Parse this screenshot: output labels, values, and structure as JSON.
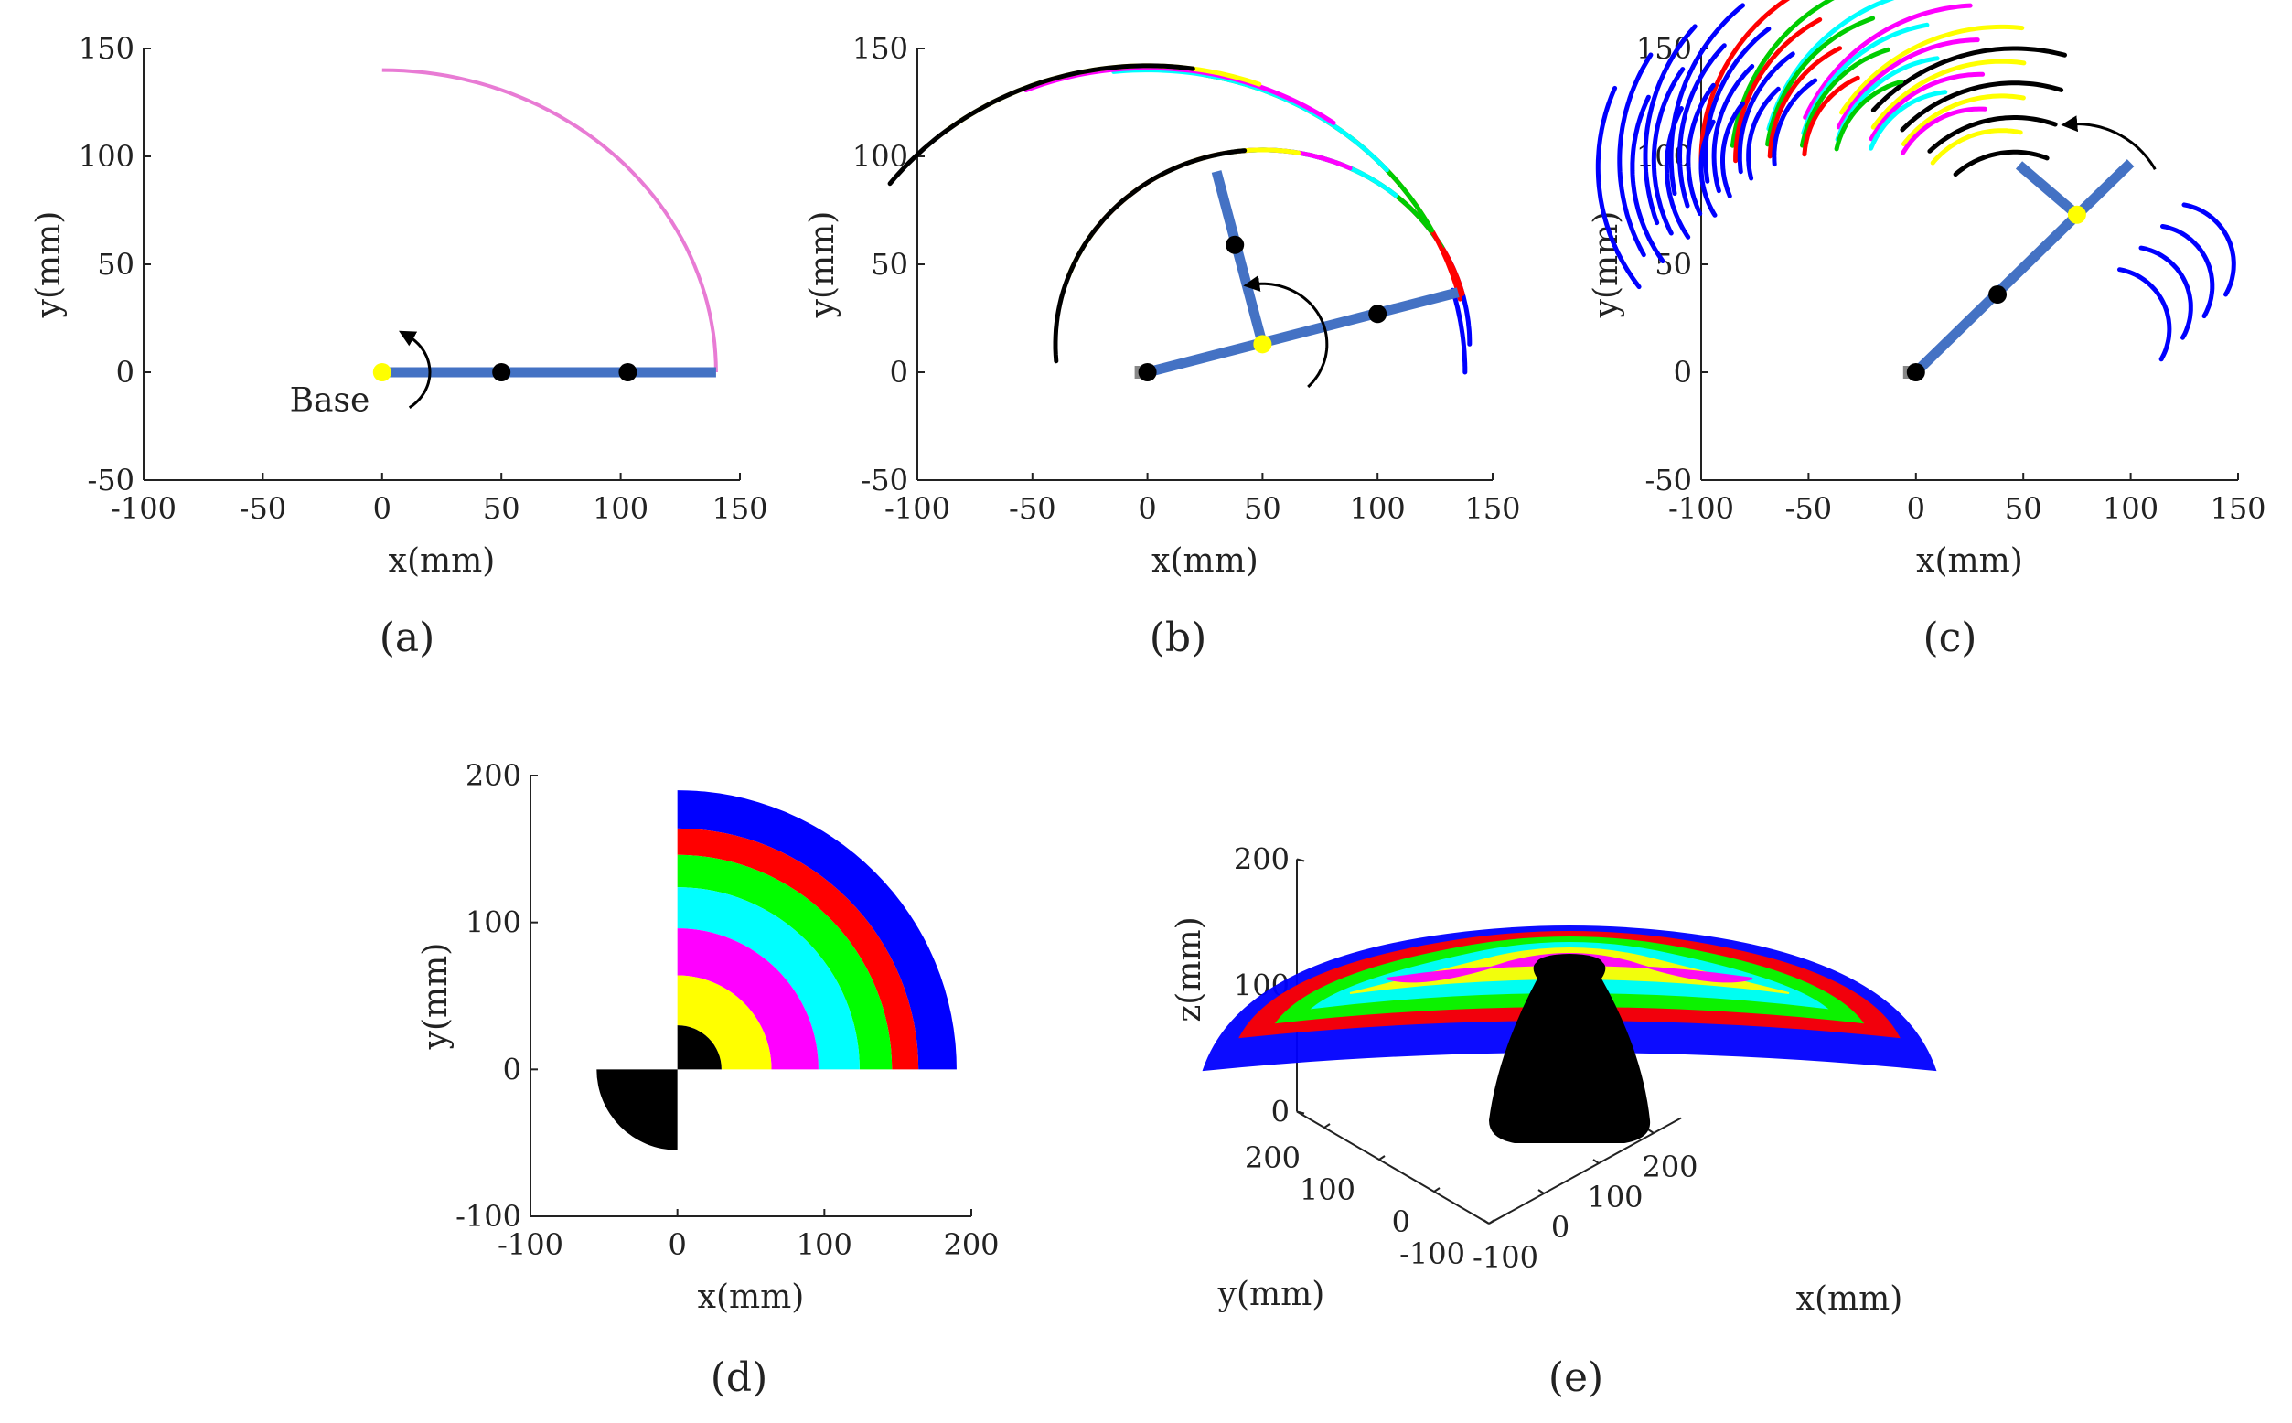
{
  "figure": {
    "panel_labels": [
      "(a)",
      "(b)",
      "(c)",
      "(d)",
      "(e)"
    ]
  },
  "colors": {
    "link": "#4472c4",
    "trajectory_a": "#e87bd4",
    "arc_cycle": [
      "#000000",
      "#ffff00",
      "#ff00ff",
      "#00ffff",
      "#00cc00",
      "#ff0000",
      "#0000ff"
    ],
    "base_joint": "#ffff00",
    "joint": "#000000",
    "region_blue": "#0000ff",
    "region_red": "#ff0000",
    "region_green": "#00ff00",
    "region_cyan": "#00ffff",
    "region_magenta": "#ff00ff",
    "region_yellow": "#ffff00",
    "region_black": "#000000"
  },
  "chart_data": [
    {
      "id": "a",
      "type": "line",
      "xlabel": "x(mm)",
      "ylabel": "y(mm)",
      "xlim": [
        -100,
        150
      ],
      "ylim": [
        -50,
        150
      ],
      "xticks": [
        -100,
        -50,
        0,
        50,
        100,
        150
      ],
      "yticks": [
        -50,
        0,
        50,
        100,
        150
      ],
      "annotation": "Base",
      "arm_links": [
        [
          [
            0,
            0
          ],
          [
            140,
            0
          ]
        ]
      ],
      "joints": [
        [
          50,
          0
        ],
        [
          103,
          0
        ]
      ],
      "base_joint": [
        0,
        0
      ],
      "arcs": [
        {
          "center": [
            0,
            0
          ],
          "radius": 140,
          "start_deg": 0,
          "end_deg": 90,
          "color": "#e87bd4"
        }
      ],
      "rotation_arrow": {
        "center": [
          0,
          0
        ],
        "radius": 20,
        "from_deg": -55,
        "to_deg": 60
      }
    },
    {
      "id": "b",
      "type": "line",
      "xlabel": "x(mm)",
      "ylabel": "y(mm)",
      "xlim": [
        -100,
        150
      ],
      "ylim": [
        -50,
        150
      ],
      "xticks": [
        -100,
        -50,
        0,
        50,
        100,
        150
      ],
      "yticks": [
        -50,
        0,
        50,
        100,
        150
      ],
      "arm_links": [
        [
          [
            0,
            0
          ],
          [
            135,
            37
          ]
        ],
        [
          [
            50,
            13
          ],
          [
            30,
            93
          ]
        ]
      ],
      "joints": [
        [
          0,
          0
        ],
        [
          38,
          59
        ],
        [
          100,
          27
        ]
      ],
      "base_joint": [
        50,
        13
      ],
      "arcs": [
        {
          "center": [
            50,
            13
          ],
          "radius": 90,
          "start_deg": 0,
          "end_deg": 45,
          "color": "#0000ff"
        },
        {
          "center": [
            50,
            13
          ],
          "radius": 90,
          "start_deg": 15,
          "end_deg": 75,
          "color": "#ff0000"
        },
        {
          "center": [
            50,
            13
          ],
          "radius": 90,
          "start_deg": 30,
          "end_deg": 100,
          "color": "#00cc00"
        },
        {
          "center": [
            50,
            13
          ],
          "radius": 90,
          "start_deg": 50,
          "end_deg": 120,
          "color": "#00ffff"
        },
        {
          "center": [
            50,
            13
          ],
          "radius": 90,
          "start_deg": 65,
          "end_deg": 145,
          "color": "#ff00ff"
        },
        {
          "center": [
            50,
            13
          ],
          "radius": 90,
          "start_deg": 80,
          "end_deg": 160,
          "color": "#ffff00"
        },
        {
          "center": [
            50,
            13
          ],
          "radius": 90,
          "start_deg": 95,
          "end_deg": 185,
          "color": "#000000"
        },
        {
          "center": [
            0,
            0
          ],
          "radius": 138,
          "start_deg": 0,
          "end_deg": 16,
          "color": "#0000ff"
        },
        {
          "center": [
            0,
            0
          ],
          "radius": 140,
          "start_deg": 14,
          "end_deg": 60,
          "color": "#ff0000"
        },
        {
          "center": [
            0,
            0
          ],
          "radius": 140,
          "start_deg": 28,
          "end_deg": 80,
          "color": "#00cc00"
        },
        {
          "center": [
            0,
            0
          ],
          "radius": 140,
          "start_deg": 42,
          "end_deg": 96,
          "color": "#00ffff"
        },
        {
          "center": [
            0,
            0
          ],
          "radius": 141,
          "start_deg": 55,
          "end_deg": 112,
          "color": "#ff00ff"
        },
        {
          "center": [
            0,
            0
          ],
          "radius": 142,
          "start_deg": 70,
          "end_deg": 128,
          "color": "#ffff00"
        },
        {
          "center": [
            0,
            0
          ],
          "radius": 142,
          "start_deg": 82,
          "end_deg": 142,
          "color": "#000000"
        }
      ],
      "rotation_arrow": {
        "center": [
          50,
          13
        ],
        "radius": 28,
        "from_deg": -45,
        "to_deg": 100
      }
    },
    {
      "id": "c",
      "type": "line",
      "xlabel": "x(mm)",
      "ylabel": "y(mm)",
      "xlim": [
        -100,
        150
      ],
      "ylim": [
        -50,
        150
      ],
      "xticks": [
        -100,
        -50,
        0,
        50,
        100,
        150
      ],
      "yticks": [
        -50,
        0,
        50,
        100,
        150
      ],
      "arm_links": [
        [
          [
            0,
            0
          ],
          [
            100,
            97
          ]
        ],
        [
          [
            75,
            73
          ],
          [
            48,
            96
          ]
        ]
      ],
      "joints": [
        [
          0,
          0
        ],
        [
          38,
          36
        ]
      ],
      "base_joint": [
        75,
        73
      ],
      "arc_centers": [
        [
          46,
          60
        ],
        [
          40,
          70
        ],
        [
          30,
          80
        ],
        [
          18,
          88
        ],
        [
          4,
          94
        ],
        [
          -10,
          98
        ],
        [
          -24,
          100
        ],
        [
          -36,
          100
        ],
        [
          -48,
          98
        ],
        [
          -58,
          95
        ]
      ],
      "arc_radii": [
        42,
        58,
        74,
        90
      ],
      "arc_span_deg": 62,
      "rotation_arrow": {
        "center": [
          75,
          73
        ],
        "radius": 42,
        "from_deg": 30,
        "to_deg": 95
      }
    },
    {
      "id": "d",
      "type": "scatter",
      "xlabel": "x(mm)",
      "ylabel": "y(mm)",
      "xlim": [
        -100,
        200
      ],
      "ylim": [
        -100,
        200
      ],
      "xticks": [
        -100,
        0,
        100,
        200
      ],
      "yticks": [
        -100,
        0,
        100,
        200
      ],
      "rings": [
        {
          "r_inner": 164,
          "r_outer": 190,
          "color": "#0000ff"
        },
        {
          "r_inner": 146,
          "r_outer": 164,
          "color": "#ff0000"
        },
        {
          "r_inner": 124,
          "r_outer": 146,
          "color": "#00ff00"
        },
        {
          "r_inner": 96,
          "r_outer": 124,
          "color": "#00ffff"
        },
        {
          "r_inner": 64,
          "r_outer": 96,
          "color": "#ff00ff"
        },
        {
          "r_inner": 30,
          "r_outer": 64,
          "color": "#ffff00"
        },
        {
          "r_inner": 0,
          "r_outer": 30,
          "color": "#000000"
        }
      ],
      "third_quadrant_sector": {
        "radius": 55,
        "color": "#000000"
      }
    },
    {
      "id": "e",
      "type": "scatter",
      "xlabel": "x(mm)",
      "ylabel": "y(mm)",
      "zlabel": "z(mm)",
      "x_ticks": [
        -100,
        0,
        100,
        200
      ],
      "y_ticks": [
        -100,
        0,
        100,
        200
      ],
      "z_ticks": [
        0,
        100,
        200
      ],
      "dome_layers": [
        "#0000ff",
        "#ff0000",
        "#00ff00",
        "#00ffff",
        "#ffff00",
        "#ff00ff"
      ],
      "core_color": "#000000"
    }
  ]
}
